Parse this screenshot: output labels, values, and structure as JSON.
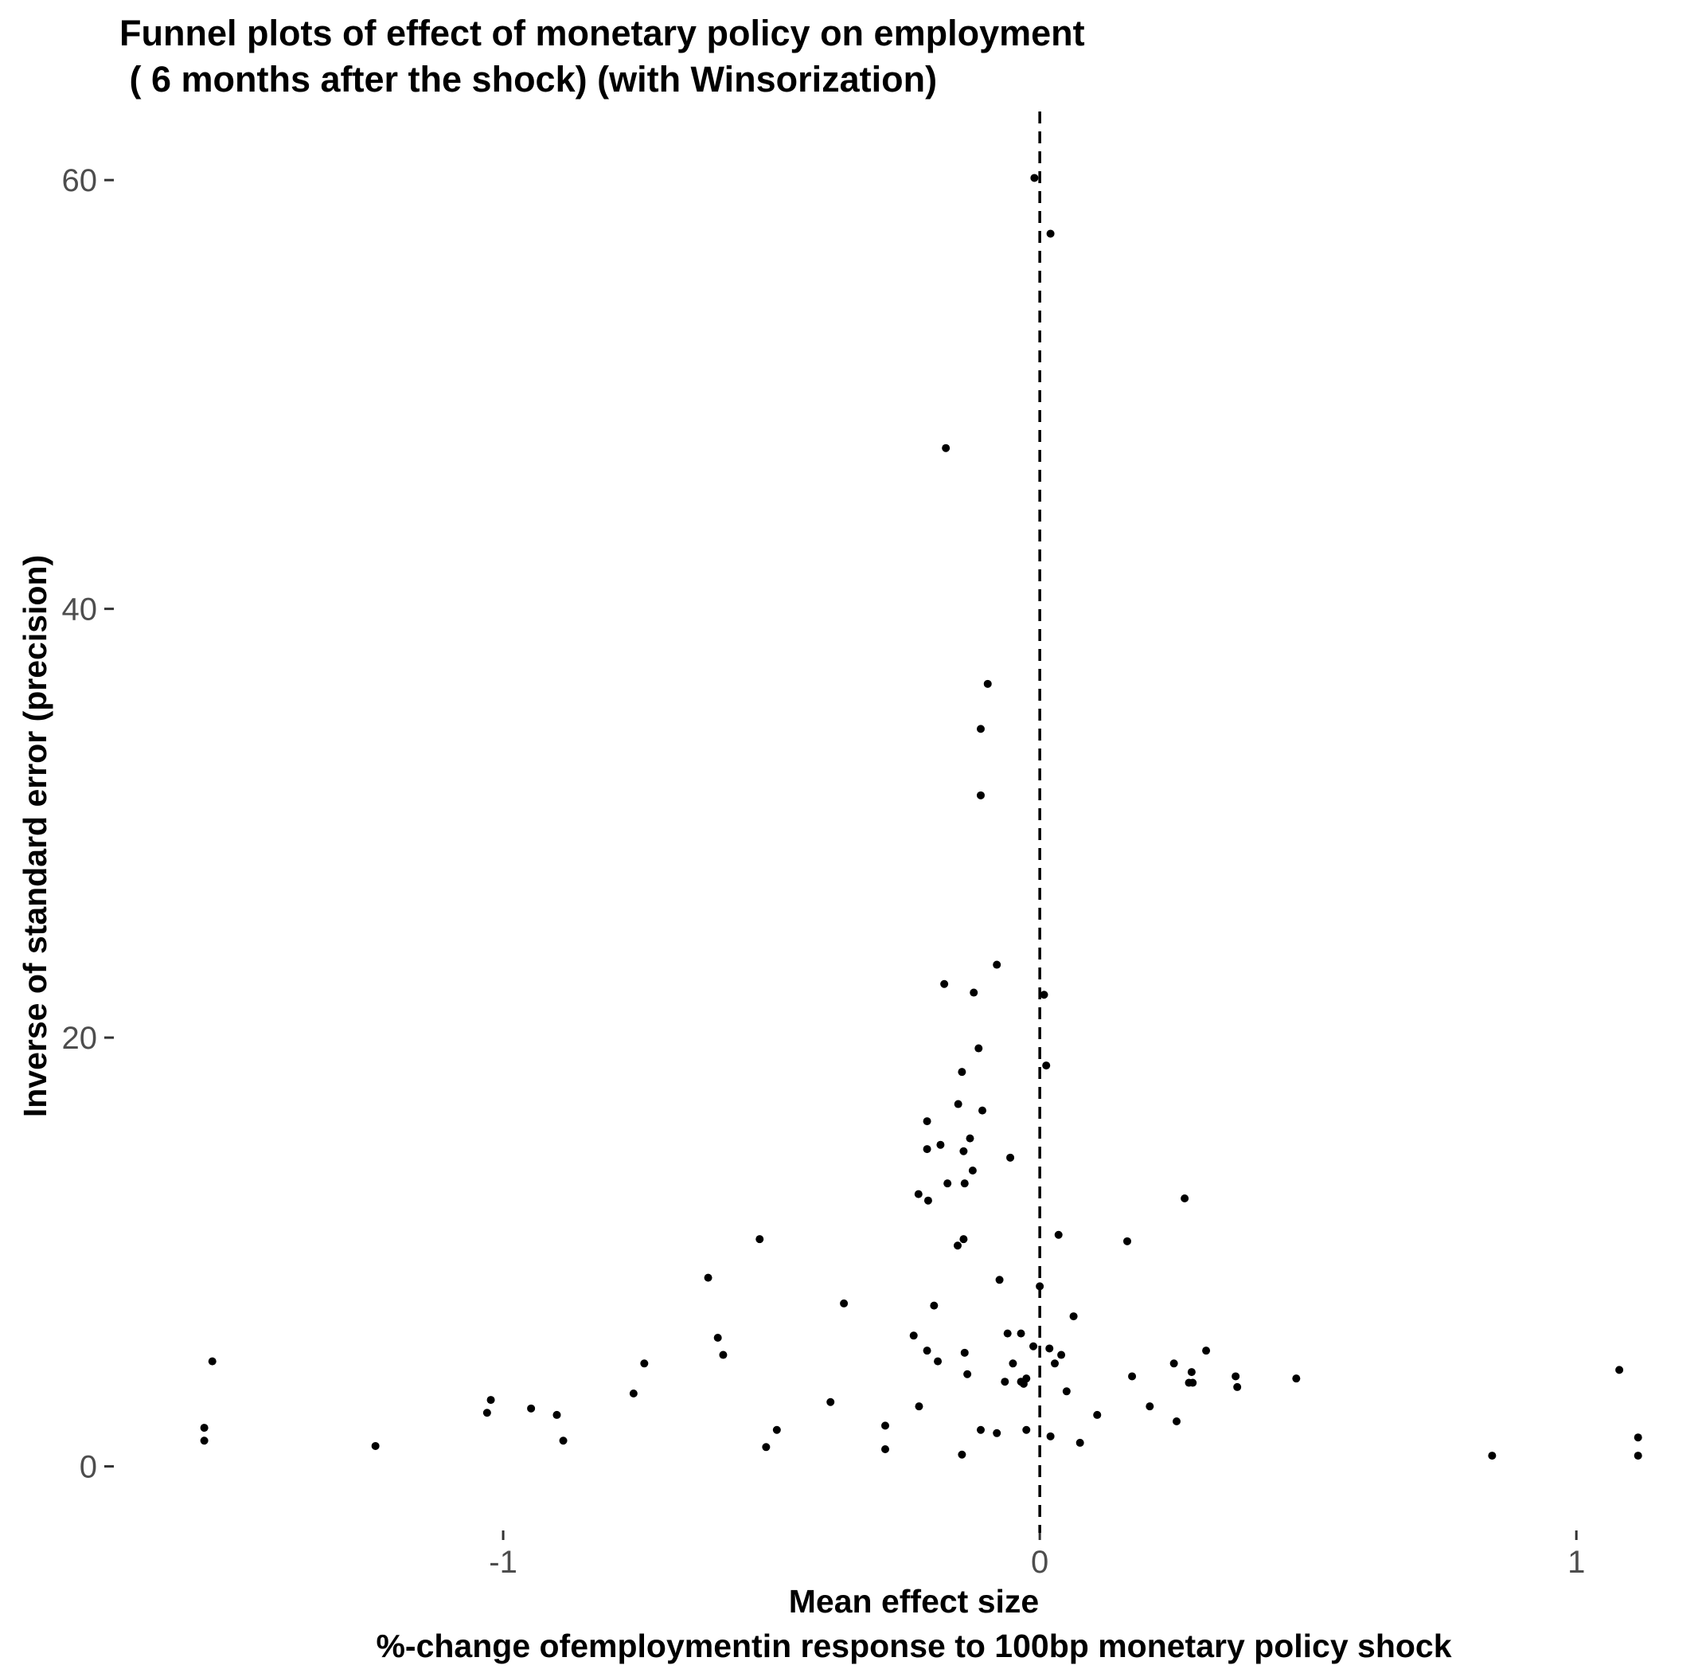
{
  "chart_data": {
    "type": "scatter",
    "title_lines": [
      "Funnel plots of effect of monetary policy on employment",
      " ( 6 months after the shock) (with Winsorization)"
    ],
    "xlabel_lines": [
      "Mean effect size",
      "%-change ofemploymentin response to 100bp monetary policy shock"
    ],
    "ylabel": "Inverse of standard error (precision)",
    "x_ticks": [
      -1,
      0,
      1
    ],
    "x_tick_labels": [
      "-1",
      "0",
      "1"
    ],
    "y_ticks": [
      0,
      20,
      40,
      60
    ],
    "y_tick_labels": [
      "0",
      "20",
      "40",
      "60"
    ],
    "xlim": [
      -1.73,
      1.2
    ],
    "ylim": [
      -3.1,
      63.2
    ],
    "grid": false,
    "legend": "none",
    "reference_line": {
      "x": 0,
      "style": "dashed",
      "color": "#000000"
    },
    "point_color": "#000000",
    "points": [
      {
        "x": -0.01,
        "y": 60.1
      },
      {
        "x": 0.02,
        "y": 57.5
      },
      {
        "x": -0.175,
        "y": 47.5
      },
      {
        "x": -0.097,
        "y": 36.5
      },
      {
        "x": -0.11,
        "y": 34.4
      },
      {
        "x": -0.11,
        "y": 31.3
      },
      {
        "x": -0.08,
        "y": 23.4
      },
      {
        "x": -0.178,
        "y": 22.5
      },
      {
        "x": -0.123,
        "y": 22.1
      },
      {
        "x": 0.008,
        "y": 22.0
      },
      {
        "x": -0.114,
        "y": 19.5
      },
      {
        "x": 0.012,
        "y": 18.7
      },
      {
        "x": -0.145,
        "y": 18.4
      },
      {
        "x": -0.152,
        "y": 16.9
      },
      {
        "x": -0.107,
        "y": 16.6
      },
      {
        "x": -0.21,
        "y": 16.1
      },
      {
        "x": -0.13,
        "y": 15.3
      },
      {
        "x": -0.185,
        "y": 15.0
      },
      {
        "x": -0.21,
        "y": 14.8
      },
      {
        "x": -0.142,
        "y": 14.7
      },
      {
        "x": -0.055,
        "y": 14.4
      },
      {
        "x": -0.125,
        "y": 13.8
      },
      {
        "x": -0.172,
        "y": 13.2
      },
      {
        "x": -0.14,
        "y": 13.2
      },
      {
        "x": -0.226,
        "y": 12.7
      },
      {
        "x": -0.208,
        "y": 12.4
      },
      {
        "x": 0.27,
        "y": 12.5
      },
      {
        "x": -0.142,
        "y": 10.6
      },
      {
        "x": -0.153,
        "y": 10.3
      },
      {
        "x": -0.522,
        "y": 10.6
      },
      {
        "x": 0.163,
        "y": 10.5
      },
      {
        "x": 0.035,
        "y": 10.8
      },
      {
        "x": -0.618,
        "y": 8.8
      },
      {
        "x": -0.075,
        "y": 8.7
      },
      {
        "x": 0.0,
        "y": 8.4
      },
      {
        "x": -0.365,
        "y": 7.6
      },
      {
        "x": -0.197,
        "y": 7.5
      },
      {
        "x": 0.063,
        "y": 7.0
      },
      {
        "x": -0.235,
        "y": 6.1
      },
      {
        "x": -0.6,
        "y": 6.0
      },
      {
        "x": -0.06,
        "y": 6.2
      },
      {
        "x": -0.035,
        "y": 6.2
      },
      {
        "x": -0.012,
        "y": 5.6
      },
      {
        "x": 0.018,
        "y": 5.5
      },
      {
        "x": 0.31,
        "y": 5.4
      },
      {
        "x": -0.21,
        "y": 5.4
      },
      {
        "x": -0.14,
        "y": 5.3
      },
      {
        "x": -0.59,
        "y": 5.2
      },
      {
        "x": 0.04,
        "y": 5.2
      },
      {
        "x": -0.19,
        "y": 4.9
      },
      {
        "x": -0.05,
        "y": 4.8
      },
      {
        "x": 0.028,
        "y": 4.8
      },
      {
        "x": 0.25,
        "y": 4.8
      },
      {
        "x": -1.542,
        "y": 4.9
      },
      {
        "x": -0.737,
        "y": 4.8
      },
      {
        "x": 1.08,
        "y": 4.5
      },
      {
        "x": 0.283,
        "y": 4.4
      },
      {
        "x": -0.135,
        "y": 4.3
      },
      {
        "x": 0.172,
        "y": 4.2
      },
      {
        "x": 0.365,
        "y": 4.2
      },
      {
        "x": -0.025,
        "y": 4.1
      },
      {
        "x": 0.478,
        "y": 4.1
      },
      {
        "x": -0.035,
        "y": 3.95
      },
      {
        "x": -0.065,
        "y": 3.95
      },
      {
        "x": 0.278,
        "y": 3.9
      },
      {
        "x": 0.285,
        "y": 3.9
      },
      {
        "x": -0.03,
        "y": 3.85
      },
      {
        "x": 0.368,
        "y": 3.7
      },
      {
        "x": 0.05,
        "y": 3.5
      },
      {
        "x": -0.757,
        "y": 3.4
      },
      {
        "x": -0.39,
        "y": 3.0
      },
      {
        "x": -1.023,
        "y": 3.1
      },
      {
        "x": -0.225,
        "y": 2.8
      },
      {
        "x": 0.205,
        "y": 2.8
      },
      {
        "x": -0.948,
        "y": 2.7
      },
      {
        "x": -1.03,
        "y": 2.5
      },
      {
        "x": -0.9,
        "y": 2.4
      },
      {
        "x": 0.107,
        "y": 2.4
      },
      {
        "x": 0.255,
        "y": 2.1
      },
      {
        "x": -0.288,
        "y": 1.9
      },
      {
        "x": -1.557,
        "y": 1.8
      },
      {
        "x": -0.49,
        "y": 1.7
      },
      {
        "x": -0.11,
        "y": 1.7
      },
      {
        "x": -0.025,
        "y": 1.7
      },
      {
        "x": -0.08,
        "y": 1.55
      },
      {
        "x": 0.02,
        "y": 1.4
      },
      {
        "x": 1.115,
        "y": 1.35
      },
      {
        "x": -0.888,
        "y": 1.2
      },
      {
        "x": -1.557,
        "y": 1.2
      },
      {
        "x": 0.075,
        "y": 1.1
      },
      {
        "x": -1.238,
        "y": 0.95
      },
      {
        "x": -0.51,
        "y": 0.9
      },
      {
        "x": -0.288,
        "y": 0.8
      },
      {
        "x": -0.145,
        "y": 0.55
      },
      {
        "x": 0.843,
        "y": 0.5
      },
      {
        "x": 1.115,
        "y": 0.5
      }
    ]
  }
}
